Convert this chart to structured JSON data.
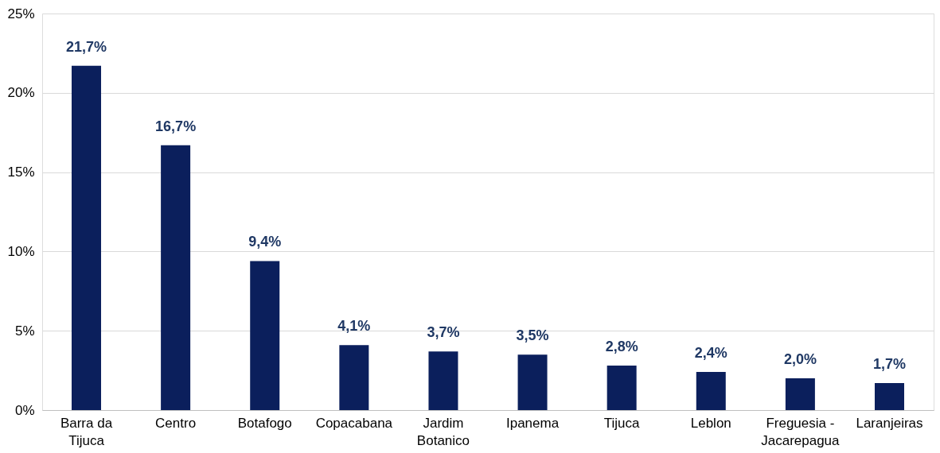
{
  "chart_data": {
    "type": "bar",
    "categories": [
      "Barra da Tijuca",
      "Centro",
      "Botafogo",
      "Copacabana",
      "Jardim Botanico",
      "Ipanema",
      "Tijuca",
      "Leblon",
      "Freguesia - Jacarepagua",
      "Laranjeiras"
    ],
    "values": [
      21.7,
      16.7,
      9.4,
      4.1,
      3.7,
      3.5,
      2.8,
      2.4,
      2.0,
      1.7
    ],
    "value_labels": [
      "21,7%",
      "16,7%",
      "9,4%",
      "4,1%",
      "3,7%",
      "3,5%",
      "2,8%",
      "2,4%",
      "2,0%",
      "1,7%"
    ],
    "color": "#0b1f5c",
    "ylim": [
      0,
      25
    ],
    "yticks": [
      {
        "value": 0,
        "label": "0%"
      },
      {
        "value": 5,
        "label": "5%"
      },
      {
        "value": 10,
        "label": "10%"
      },
      {
        "value": 15,
        "label": "15%"
      },
      {
        "value": 20,
        "label": "20%"
      },
      {
        "value": 25,
        "label": "25%"
      }
    ],
    "grid": "y"
  }
}
